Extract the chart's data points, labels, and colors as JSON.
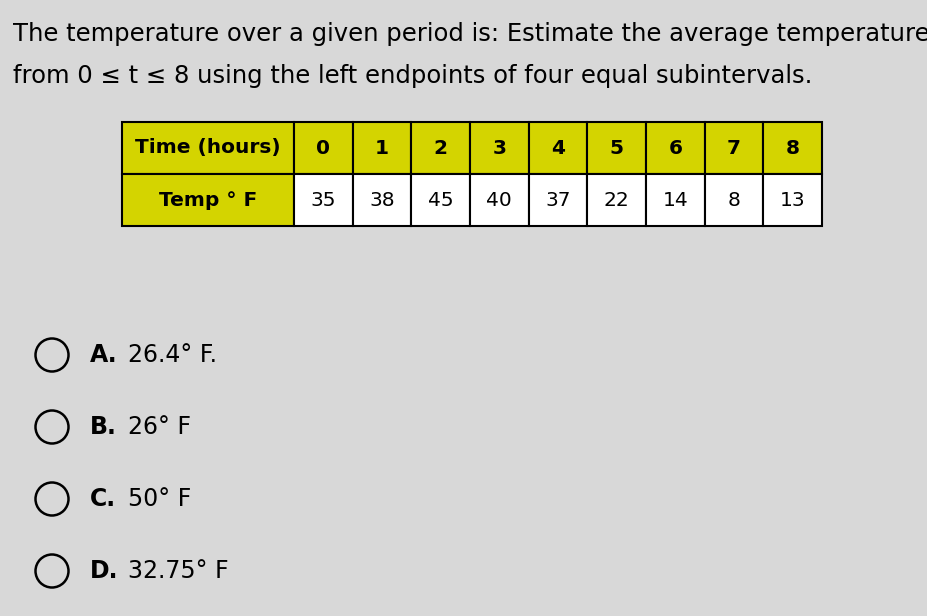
{
  "title_line1": "The temperature over a given period is: Estimate the average temperature",
  "title_line2": "from 0 ≤ t ≤ 8 using the left endpoints of four equal subintervals.",
  "table_header": [
    "Time (hours)",
    "0",
    "1",
    "2",
    "3",
    "4",
    "5",
    "6",
    "7",
    "8"
  ],
  "table_row_label": "Temp ° F",
  "table_values": [
    "35",
    "38",
    "45",
    "40",
    "37",
    "22",
    "14",
    "8",
    "13"
  ],
  "header_bg_color": "#d4d400",
  "row_label_bg_color": "#d4d400",
  "row_bg_color": "#ffffff",
  "table_border_color": "#000000",
  "options": [
    {
      "letter": "A",
      "text": "26.4° F."
    },
    {
      "letter": "B",
      "text": "26° F"
    },
    {
      "letter": "C",
      "text": "50° F"
    },
    {
      "letter": "D",
      "text": "32.75° F"
    }
  ],
  "bg_color": "#d8d8d8",
  "title_fontsize": 17.5,
  "option_fontsize": 17,
  "table_fontsize": 14.5,
  "table_header_fontsize": 14.5
}
